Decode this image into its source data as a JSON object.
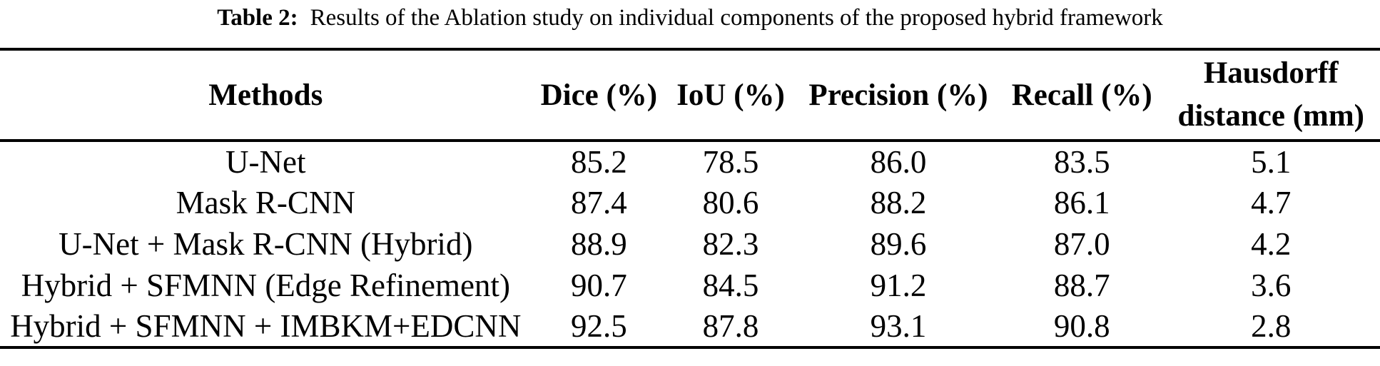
{
  "title": {
    "label": "Table 2:",
    "text": "Results of the Ablation study on individual components of the proposed hybrid framework"
  },
  "table": {
    "headers": [
      "Methods",
      "Dice (%)",
      "IoU (%)",
      "Precision (%)",
      "Recall (%)"
    ],
    "hausdorff_header": {
      "line1": "Hausdorff",
      "line2": "distance (mm)"
    },
    "rows": [
      {
        "method": "U-Net",
        "dice": "85.2",
        "iou": "78.5",
        "precision": "86.0",
        "recall": "83.5",
        "hausdorff": "5.1"
      },
      {
        "method": "Mask R-CNN",
        "dice": "87.4",
        "iou": "80.6",
        "precision": "88.2",
        "recall": "86.1",
        "hausdorff": "4.7"
      },
      {
        "method": "U-Net + Mask R-CNN (Hybrid)",
        "dice": "88.9",
        "iou": "82.3",
        "precision": "89.6",
        "recall": "87.0",
        "hausdorff": "4.2"
      },
      {
        "method": "Hybrid + SFMNN (Edge Refinement)",
        "dice": "90.7",
        "iou": "84.5",
        "precision": "91.2",
        "recall": "88.7",
        "hausdorff": "3.6"
      },
      {
        "method": "Hybrid + SFMNN + IMBKM+EDCNN",
        "dice": "92.5",
        "iou": "87.8",
        "precision": "93.1",
        "recall": "90.8",
        "hausdorff": "2.8"
      }
    ],
    "colors": {
      "text": "#000000",
      "rule": "#000000",
      "background": "#ffffff"
    }
  }
}
